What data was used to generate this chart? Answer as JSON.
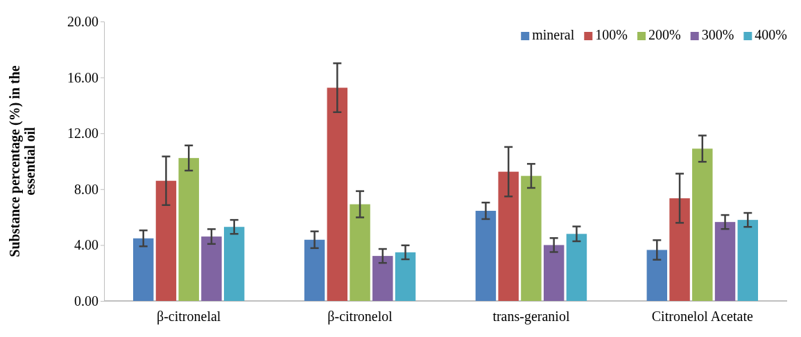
{
  "chart_data": {
    "type": "bar",
    "ylabel": "Substance percentage (%) in the essential oil",
    "categories": [
      "β-citronelal",
      "β-citronelol",
      "trans-geraniol",
      "Citronelol Acetate"
    ],
    "series": [
      {
        "name": "mineral",
        "color": "#4f81bd",
        "values": [
          4.48,
          4.38,
          6.45,
          3.65
        ],
        "errors": [
          0.57,
          0.6,
          0.59,
          0.7
        ]
      },
      {
        "name": "100%",
        "color": "#c0504d",
        "values": [
          8.6,
          15.26,
          9.25,
          7.35
        ],
        "errors": [
          1.74,
          1.75,
          1.77,
          1.76
        ]
      },
      {
        "name": "200%",
        "color": "#9bbb59",
        "values": [
          10.23,
          6.92,
          8.95,
          10.9
        ],
        "errors": [
          0.9,
          0.94,
          0.86,
          0.94
        ]
      },
      {
        "name": "300%",
        "color": "#8064a2",
        "values": [
          4.61,
          3.22,
          4.0,
          5.65
        ],
        "errors": [
          0.53,
          0.5,
          0.5,
          0.5
        ]
      },
      {
        "name": "400%",
        "color": "#4bacc6",
        "values": [
          5.3,
          3.48,
          4.8,
          5.8
        ],
        "errors": [
          0.5,
          0.5,
          0.53,
          0.5
        ]
      }
    ],
    "ylim": [
      0,
      20
    ],
    "yticks": [
      {
        "value": 0,
        "label": "0.00"
      },
      {
        "value": 4,
        "label": "4.00"
      },
      {
        "value": 8,
        "label": "8.00"
      },
      {
        "value": 12,
        "label": "12.00"
      },
      {
        "value": 16,
        "label": "16.00"
      },
      {
        "value": 20,
        "label": "20.00"
      }
    ],
    "grid": false,
    "legend": "top right"
  }
}
